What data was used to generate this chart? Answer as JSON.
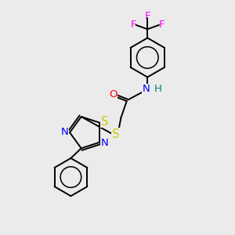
{
  "bg_color": "#ebebeb",
  "colors": {
    "C": "#000000",
    "N": "#0000ff",
    "O": "#ff0000",
    "S": "#cccc00",
    "F": "#ff00ff",
    "H": "#008080"
  },
  "lw": 1.4,
  "fs": 9.5
}
